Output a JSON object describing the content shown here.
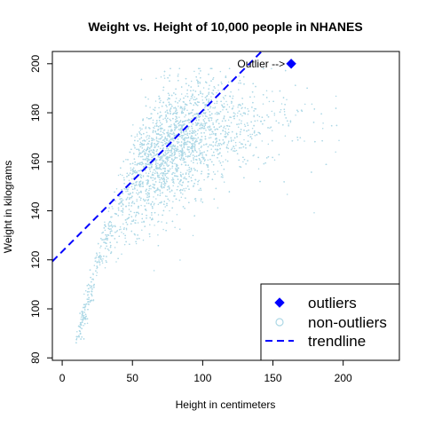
{
  "chart_data": {
    "type": "scatter",
    "title": "Weight vs. Height of 10,000 people in NHANES",
    "xlabel": "Height in centimeters",
    "ylabel": "Weight in kilograms",
    "xlim": [
      -7,
      240
    ],
    "ylim": [
      79,
      205
    ],
    "xticks": [
      0,
      50,
      100,
      150,
      200
    ],
    "yticks": [
      80,
      100,
      120,
      140,
      160,
      180,
      200
    ],
    "grid": false,
    "legend_position": "bottom-right",
    "legend": [
      "outliers",
      "non-outliers",
      "trendline"
    ],
    "colors": {
      "outliers": "#0000ff",
      "non_outliers": "#add8e6",
      "trendline": "#0000ff"
    },
    "series": [
      {
        "name": "non-outliers",
        "marker": "circle",
        "description": "~10,000 points; distribution approximated by density profile",
        "density_profile": {
          "x": [
            10,
            14,
            18,
            22,
            26,
            30,
            35,
            40,
            45,
            50,
            60,
            70,
            80,
            90,
            100,
            110,
            120,
            140,
            160,
            200
          ],
          "y_center": [
            88,
            95,
            103,
            112,
            120,
            127,
            134,
            140,
            145,
            150,
            158,
            163,
            167,
            170,
            172,
            173,
            174,
            175,
            175,
            173
          ],
          "y_spread": [
            2,
            3,
            4,
            4,
            4,
            5,
            6,
            8,
            10,
            11,
            12,
            12,
            12,
            12,
            12,
            11,
            10,
            10,
            10,
            10
          ],
          "weight": [
            2,
            3,
            3,
            3,
            3,
            3,
            3,
            3,
            4,
            6,
            10,
            12,
            12,
            10,
            8,
            5,
            3,
            1.5,
            0.6,
            0.15
          ]
        }
      },
      {
        "name": "outliers",
        "marker": "diamond",
        "points": [
          {
            "x": 163,
            "y": 200
          }
        ]
      },
      {
        "name": "trendline",
        "style": "dashed",
        "line": {
          "intercept": 123.4,
          "slope": 0.575
        }
      }
    ],
    "annotations": [
      {
        "text": "Outlier -->",
        "x": 163,
        "y": 200
      }
    ]
  }
}
